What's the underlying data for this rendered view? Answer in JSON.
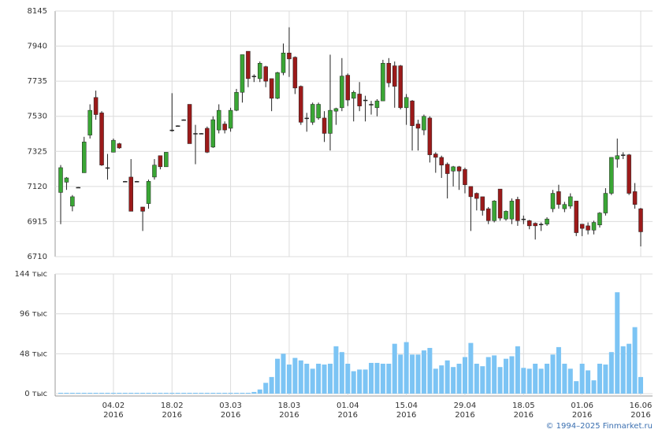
{
  "chart_data": [
    {
      "type": "candlestick",
      "categories": [
        null,
        null,
        null,
        null,
        null,
        null,
        null,
        null,
        null,
        {
          "date": "04.02",
          "year": "2016"
        },
        null,
        null,
        null,
        null,
        null,
        null,
        null,
        null,
        null,
        {
          "date": "18.02",
          "year": "2016"
        },
        null,
        null,
        null,
        null,
        null,
        null,
        null,
        null,
        null,
        {
          "date": "03.03",
          "year": "2016"
        },
        null,
        null,
        null,
        null,
        null,
        null,
        null,
        null,
        null,
        {
          "date": "18.03",
          "year": "2016"
        },
        null,
        null,
        null,
        null,
        null,
        null,
        null,
        null,
        null,
        {
          "date": "01.04",
          "year": "2016"
        },
        null,
        null,
        null,
        null,
        null,
        null,
        null,
        null,
        null,
        {
          "date": "15.04",
          "year": "2016"
        },
        null,
        null,
        null,
        null,
        null,
        null,
        null,
        null,
        null,
        {
          "date": "29.04",
          "year": "2016"
        },
        null,
        null,
        null,
        null,
        null,
        null,
        null,
        null,
        null,
        {
          "date": "18.05",
          "year": "2016"
        },
        null,
        null,
        null,
        null,
        null,
        null,
        null,
        null,
        null,
        {
          "date": "01.06",
          "year": "2016"
        },
        null,
        null,
        null,
        null,
        null,
        null,
        null,
        null,
        null,
        {
          "date": "16.06",
          "year": "2016"
        }
      ],
      "open": [
        7085,
        7145,
        7005,
        7115,
        7200,
        7420,
        7640,
        7550,
        7230,
        7320,
        7370,
        7150,
        7175,
        7150,
        7000,
        7020,
        7175,
        7300,
        7235,
        7450,
        7475,
        7510,
        7600,
        7430,
        7430,
        7460,
        7350,
        7450,
        7485,
        7460,
        7565,
        7670,
        7910,
        7765,
        7750,
        7820,
        7750,
        7635,
        7785,
        7900,
        7875,
        7705,
        7520,
        7495,
        7520,
        7520,
        7430,
        7560,
        7580,
        7770,
        7635,
        7660,
        7625,
        7600,
        7580,
        7620,
        7840,
        7825,
        7825,
        7580,
        7620,
        7485,
        7450,
        7520,
        7310,
        7290,
        7250,
        7210,
        7235,
        7220,
        7120,
        7080,
        7060,
        6990,
        6920,
        7105,
        6930,
        6930,
        7045,
        6930,
        6920,
        6905,
        6900,
        6900,
        6990,
        7090,
        6990,
        7005,
        7035,
        6900,
        6890,
        6865,
        6895,
        6965,
        7080,
        7280,
        7305,
        7305,
        7090,
        6990
      ],
      "high": [
        7245,
        7175,
        7070,
        7117,
        7410,
        7600,
        7680,
        7560,
        7310,
        7400,
        7375,
        7152,
        7280,
        7152,
        7000,
        7160,
        7280,
        7300,
        7320,
        7665,
        7477,
        7512,
        7600,
        7480,
        7432,
        7470,
        7530,
        7600,
        7500,
        7580,
        7690,
        7890,
        7910,
        7775,
        7850,
        7825,
        7750,
        7790,
        7955,
        8050,
        7880,
        7710,
        7550,
        7610,
        7610,
        7560,
        7890,
        7580,
        7870,
        7780,
        7680,
        7730,
        7650,
        7620,
        7630,
        7860,
        7870,
        7850,
        7830,
        7660,
        7625,
        7510,
        7540,
        7530,
        7320,
        7300,
        7260,
        7240,
        7240,
        7230,
        7120,
        7085,
        7060,
        7000,
        7040,
        7105,
        6980,
        7050,
        7060,
        6950,
        6925,
        6910,
        6910,
        6940,
        7100,
        7130,
        7030,
        7080,
        7035,
        6900,
        6910,
        6920,
        6970,
        7110,
        7290,
        7400,
        7320,
        7310,
        7140,
        6995
      ],
      "low": [
        6900,
        7100,
        6975,
        7113,
        7200,
        7400,
        7510,
        7240,
        7160,
        7320,
        7340,
        7148,
        6975,
        7148,
        6860,
        6990,
        7160,
        7220,
        7235,
        7440,
        7473,
        7508,
        7370,
        7250,
        7428,
        7315,
        7345,
        7430,
        7430,
        7440,
        7560,
        7610,
        7700,
        7730,
        7730,
        7700,
        7560,
        7630,
        7770,
        7760,
        7660,
        7480,
        7440,
        7480,
        7510,
        7380,
        7330,
        7480,
        7560,
        7590,
        7500,
        7560,
        7500,
        7540,
        7530,
        7620,
        7700,
        7580,
        7570,
        7480,
        7330,
        7330,
        7420,
        7260,
        7200,
        7170,
        7050,
        7120,
        7100,
        7080,
        6860,
        6980,
        6950,
        6900,
        6910,
        6920,
        6920,
        6900,
        6890,
        6900,
        6870,
        6810,
        6860,
        6890,
        6970,
        6990,
        6970,
        6990,
        6830,
        6830,
        6840,
        6840,
        6880,
        6950,
        7070,
        7230,
        7280,
        7070,
        6990,
        6770
      ],
      "close": [
        7230,
        7170,
        7060,
        7115,
        7380,
        7565,
        7540,
        7245,
        7230,
        7390,
        7345,
        7150,
        6975,
        7150,
        6975,
        7150,
        7245,
        7235,
        7320,
        7450,
        7475,
        7510,
        7370,
        7430,
        7430,
        7320,
        7510,
        7565,
        7450,
        7565,
        7670,
        7890,
        7750,
        7765,
        7840,
        7735,
        7635,
        7785,
        7900,
        7865,
        7695,
        7495,
        7520,
        7600,
        7600,
        7430,
        7565,
        7575,
        7765,
        7625,
        7670,
        7590,
        7625,
        7600,
        7620,
        7840,
        7725,
        7705,
        7580,
        7640,
        7475,
        7460,
        7530,
        7305,
        7290,
        7245,
        7195,
        7235,
        7210,
        7130,
        7060,
        7050,
        6980,
        6920,
        7035,
        6935,
        6975,
        7035,
        6920,
        6930,
        6890,
        6890,
        6900,
        6930,
        7080,
        7015,
        7015,
        7060,
        6850,
        6875,
        6865,
        6910,
        6965,
        7080,
        7290,
        7300,
        7305,
        7080,
        7015,
        6855
      ],
      "up_color": "#3aa635",
      "down_color": "#9c1a1a",
      "wick_color": "#222222",
      "ylim": [
        6710,
        8145
      ],
      "yticks": [
        6710,
        6915,
        7120,
        7325,
        7530,
        7735,
        7940,
        8145
      ],
      "grid": true
    },
    {
      "type": "bar",
      "values": [
        1,
        1,
        1,
        1,
        1,
        1,
        1,
        1,
        1,
        1,
        1,
        1,
        1,
        1,
        1,
        1,
        1,
        1,
        1,
        1,
        1,
        1,
        1,
        1,
        1,
        1,
        1,
        1,
        1,
        1,
        1,
        1,
        1,
        2,
        5,
        13,
        20,
        42,
        48,
        35,
        43,
        40,
        36,
        30,
        36,
        35,
        36,
        57,
        50,
        36,
        27,
        29,
        29,
        37,
        37,
        36,
        36,
        60,
        47,
        62,
        47,
        47,
        52,
        55,
        30,
        34,
        40,
        32,
        36,
        44,
        61,
        36,
        33,
        44,
        46,
        32,
        42,
        45,
        57,
        31,
        30,
        36,
        30,
        36,
        47,
        56,
        36,
        30,
        15,
        36,
        28,
        16,
        36,
        35,
        50,
        122,
        57,
        60,
        80,
        20
      ],
      "color": "#7cc4f4",
      "ylim": [
        0,
        144
      ],
      "yticks": [
        {
          "value": 0,
          "label": "0 тыс"
        },
        {
          "value": 48,
          "label": "48 тыс"
        },
        {
          "value": 96,
          "label": "96 тыс"
        },
        {
          "value": 144,
          "label": "144 тыс"
        }
      ],
      "grid": true
    }
  ],
  "footer": "© 1994–2025 Finmarket.ru"
}
